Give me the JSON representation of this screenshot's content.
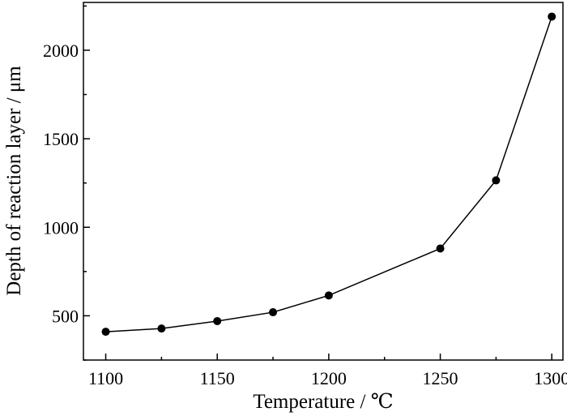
{
  "chart_data": {
    "type": "line",
    "title": "",
    "xlabel": "Temperature / ℃",
    "ylabel": "Depth of reaction layer / μm",
    "xlim": [
      1090,
      1305
    ],
    "ylim": [
      250,
      2270
    ],
    "xticks": [
      1100,
      1150,
      1200,
      1250,
      1300
    ],
    "yticks": [
      500,
      1000,
      1500,
      2000
    ],
    "x_minor_step": 25,
    "y_minor_step": 250,
    "grid": false,
    "legend": "none",
    "marker": "filled-circle",
    "line_color": "#000000",
    "series": [
      {
        "x": [
          1100,
          1125,
          1150,
          1175,
          1200,
          1250,
          1275,
          1300
        ],
        "values": [
          410,
          428,
          470,
          520,
          615,
          880,
          1265,
          2190
        ]
      }
    ]
  }
}
